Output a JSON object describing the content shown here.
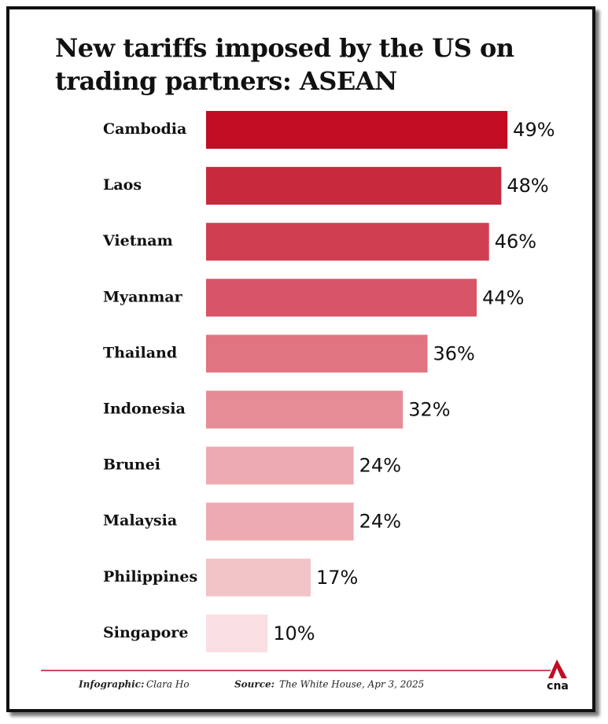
{
  "chart_data": {
    "type": "bar",
    "orientation": "horizontal",
    "title": "New tariffs imposed by the US on trading partners: ASEAN",
    "categories": [
      "Cambodia",
      "Laos",
      "Vietnam",
      "Myanmar",
      "Thailand",
      "Indonesia",
      "Brunei",
      "Malaysia",
      "Philippines",
      "Singapore"
    ],
    "values": [
      49,
      48,
      46,
      44,
      36,
      32,
      24,
      24,
      17,
      10
    ],
    "value_labels": [
      "49%",
      "48%",
      "46%",
      "44%",
      "36%",
      "32%",
      "24%",
      "24%",
      "17%",
      "10%"
    ],
    "colors": [
      "#c10c23",
      "#c8293c",
      "#d03f51",
      "#d85467",
      "#e07480",
      "#e68c96",
      "#eeaab1",
      "#eeaab1",
      "#f2c3c7",
      "#f9dfe1"
    ],
    "xlim": [
      0,
      50
    ]
  },
  "footer": {
    "infographic_label": "Infographic:",
    "infographic": "Clara Ho",
    "source_label": "Source:",
    "source": "The White House, Apr 3, 2025",
    "logo": "cna"
  }
}
